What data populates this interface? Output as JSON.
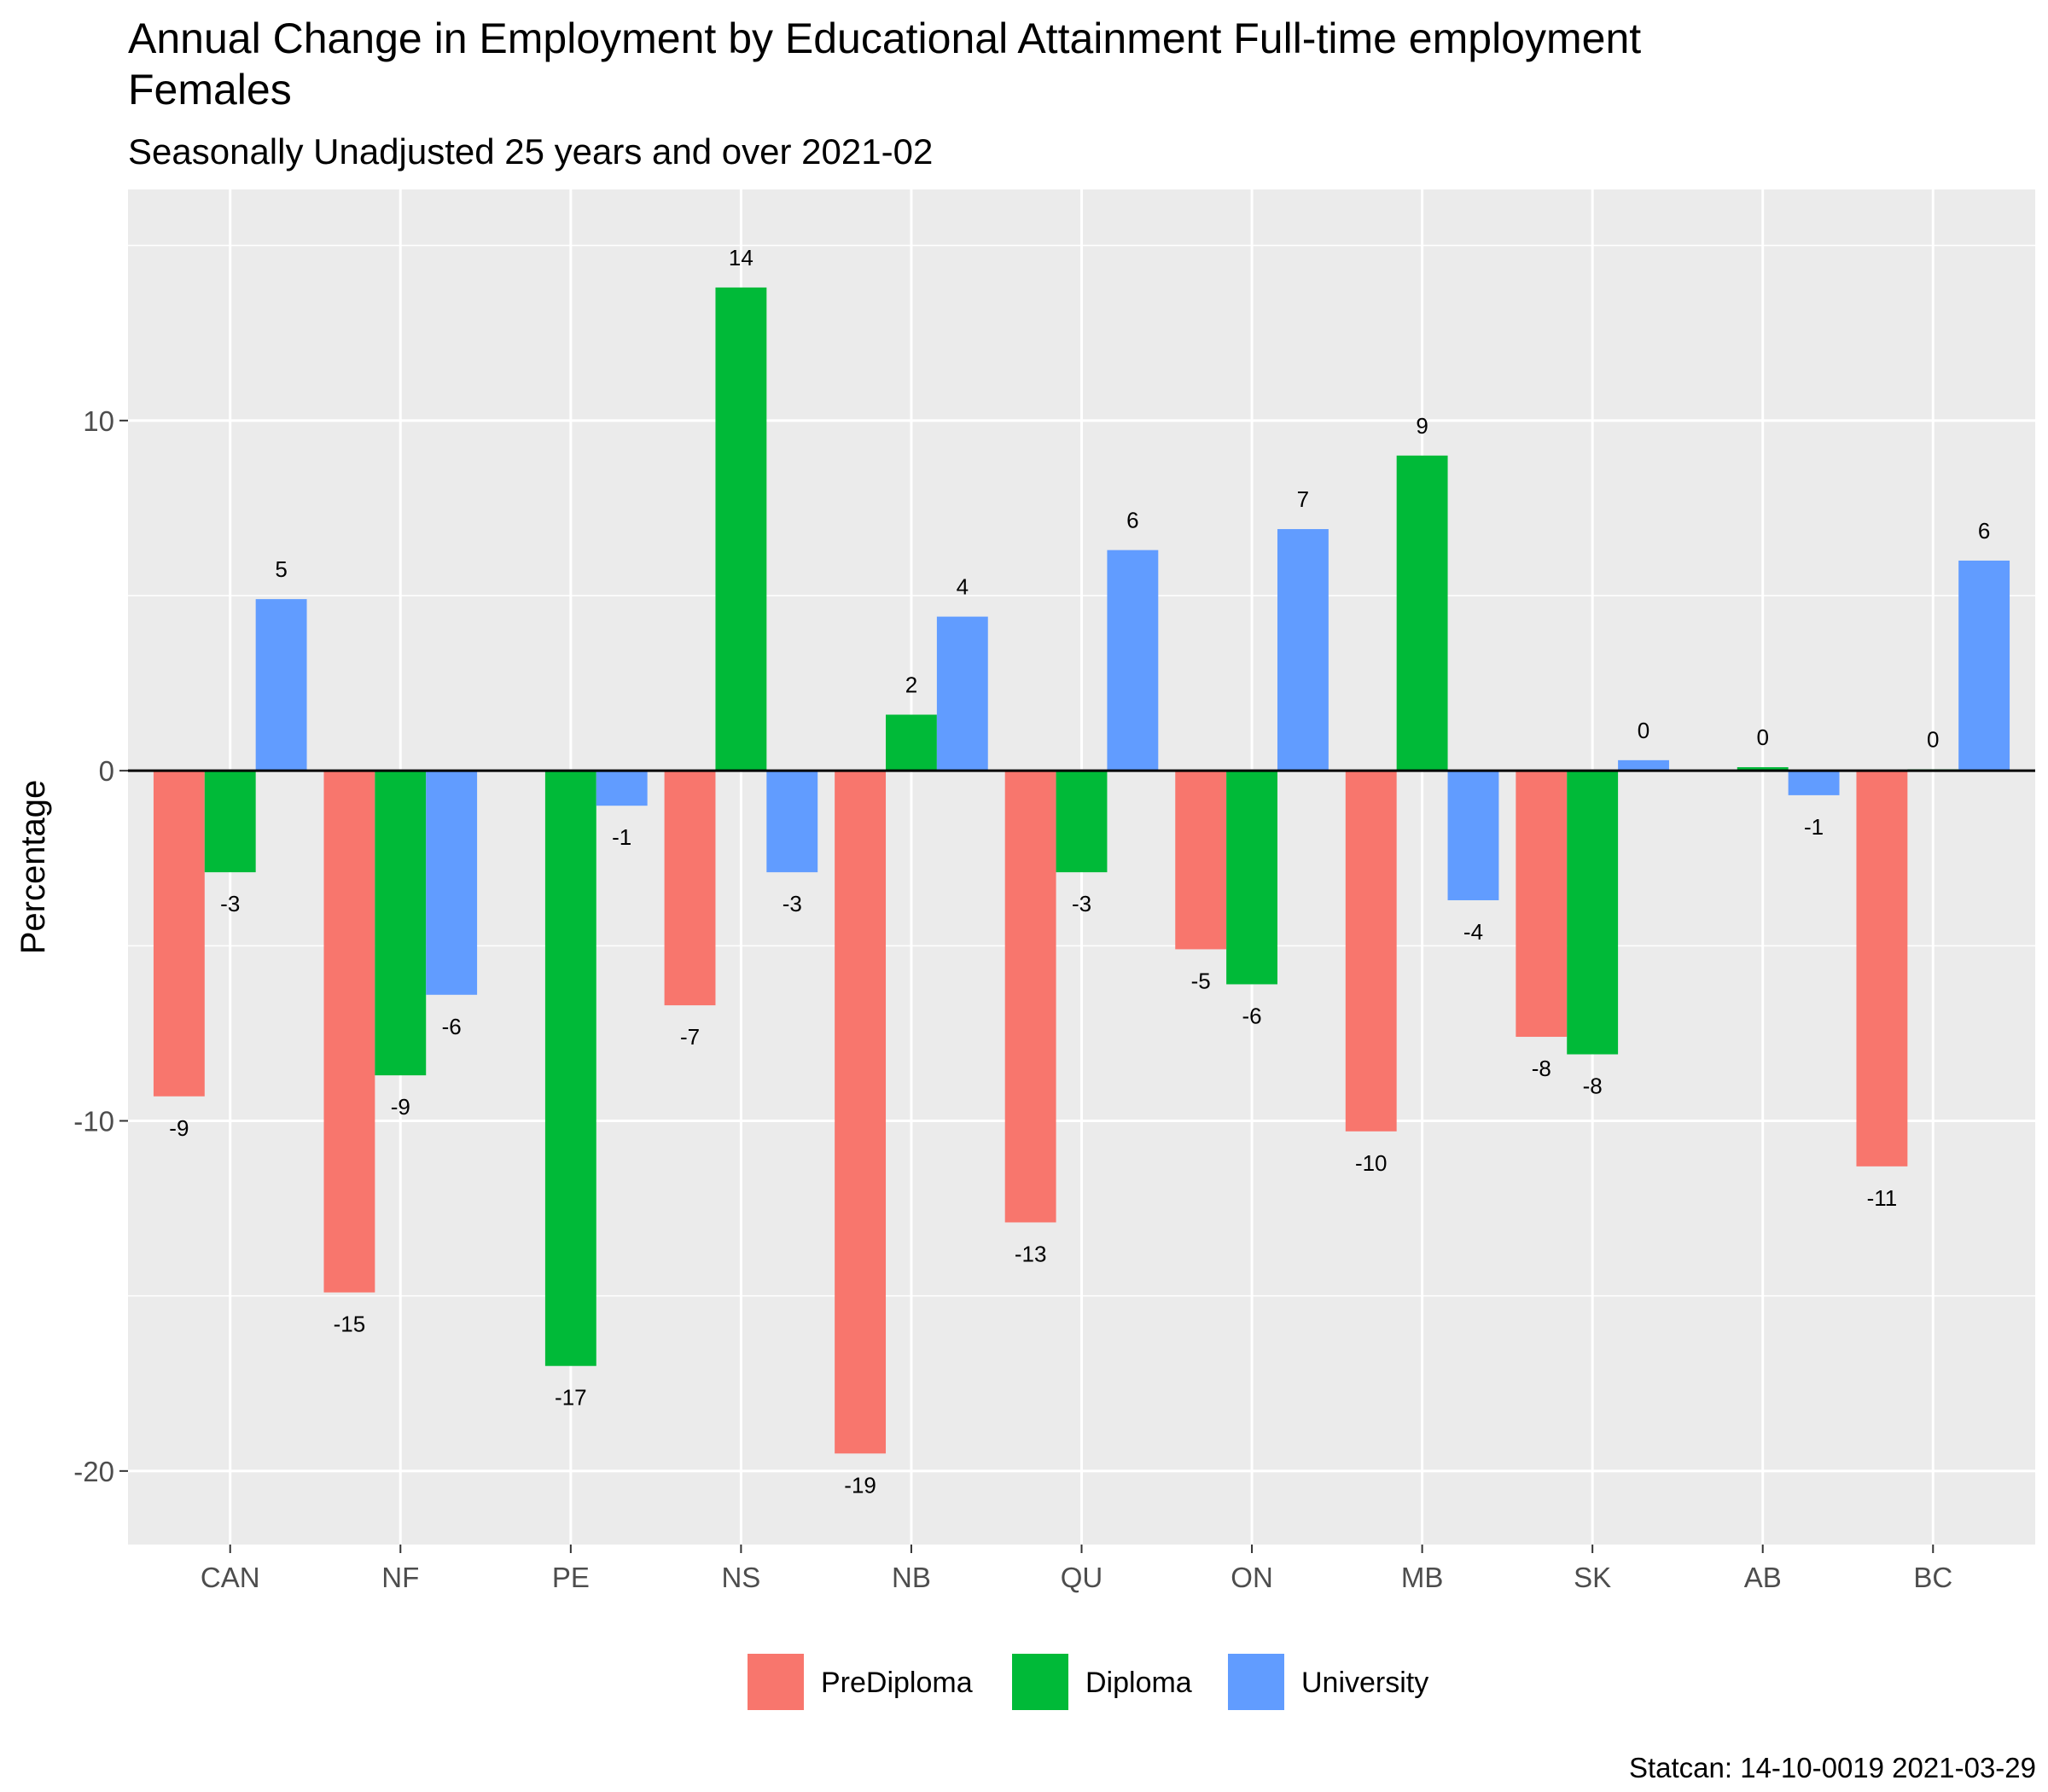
{
  "chart_data": {
    "type": "bar",
    "title": "Annual Change in Employment by Educational Attainment Full-time employment",
    "title_line2": "Females",
    "subtitle": "Seasonally Unadjusted 25 years and over 2021-02",
    "xlabel": "",
    "ylabel": "Percentage",
    "caption": "Statcan: 14-10-0019 2021-03-29",
    "categories": [
      "CAN",
      "NF",
      "PE",
      "NS",
      "NB",
      "QU",
      "ON",
      "MB",
      "SK",
      "AB",
      "BC"
    ],
    "series": [
      {
        "name": "PreDiploma",
        "color": "#F8766D",
        "values": [
          -9.3,
          -14.9,
          0,
          -6.7,
          -19.5,
          -12.9,
          -5.1,
          -10.3,
          -7.6,
          0,
          -11.3
        ],
        "labels": [
          "-9",
          "-15",
          "",
          "-7",
          "-19",
          "-13",
          "-5",
          "-10",
          "-8",
          "",
          "-11"
        ]
      },
      {
        "name": "Diploma",
        "color": "#00BA38",
        "values": [
          -2.9,
          -8.7,
          -17.0,
          13.8,
          1.6,
          -2.9,
          -6.1,
          9.0,
          -8.1,
          0.1,
          0.04
        ],
        "labels": [
          "-3",
          "-9",
          "-17",
          "14",
          "2",
          "-3",
          "-6",
          "9",
          "-8",
          "0",
          "0"
        ]
      },
      {
        "name": "University",
        "color": "#619CFF",
        "values": [
          4.9,
          -6.4,
          -1.0,
          -2.9,
          4.4,
          6.3,
          6.9,
          -3.7,
          0.3,
          -0.7,
          6.0
        ],
        "labels": [
          "5",
          "-6",
          "-1",
          "-3",
          "4",
          "6",
          "7",
          "-4",
          "0",
          "-1",
          "6"
        ]
      }
    ],
    "y_ticks": [
      -20,
      -10,
      0,
      10
    ],
    "ylim": [
      -22.1,
      16.6
    ],
    "grid": true,
    "legend_position": "bottom"
  }
}
